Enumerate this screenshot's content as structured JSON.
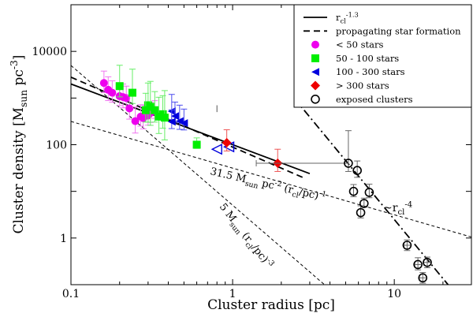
{
  "chart_data": {
    "type": "scatter",
    "title": "",
    "xlabel": "Cluster radius [pc]",
    "ylabel_parts": {
      "pre": "Cluster density [M",
      "sub": "sun",
      "mid": " pc",
      "sup": "-3",
      "post": "]"
    },
    "x_scale": "log",
    "y_scale": "log",
    "xlim": [
      0.1,
      30
    ],
    "ylim": [
      0.1,
      100000
    ],
    "x_ticks": [
      {
        "v": 0.1,
        "label": "0.1"
      },
      {
        "v": 1,
        "label": "1"
      },
      {
        "v": 10,
        "label": "10"
      }
    ],
    "y_ticks": [
      {
        "v": 1,
        "label": "1"
      },
      {
        "v": 100,
        "label": "100"
      },
      {
        "v": 10000,
        "label": "10000"
      }
    ],
    "legend": {
      "position": "top-right",
      "entries": [
        {
          "key": "fit",
          "style": "solid-line",
          "text": "r",
          "sub": "cl",
          "sup": "-1.3"
        },
        {
          "key": "propagating",
          "style": "dashed-line",
          "text": "propagating star formation"
        },
        {
          "key": "lt50",
          "style": "magenta-circle",
          "color": "#ee00ee",
          "text": "< 50 stars"
        },
        {
          "key": "50_100",
          "style": "green-square",
          "color": "#00ee00",
          "text": "50 - 100 stars"
        },
        {
          "key": "100_300",
          "style": "blue-triangle",
          "color": "#0000dd",
          "text": "100 - 300 stars"
        },
        {
          "key": "gt300",
          "style": "red-diamond",
          "color": "#ee0000",
          "text": "> 300 stars"
        },
        {
          "key": "exposed",
          "style": "open-circle",
          "color": "#000000",
          "text": "exposed clusters"
        }
      ]
    },
    "series": [
      {
        "name": "< 50 stars",
        "color": "#ee00ee",
        "marker": "circle",
        "points": [
          [
            0.16,
            2100
          ],
          [
            0.17,
            1500
          ],
          [
            0.2,
            1100
          ],
          [
            0.22,
            1000
          ],
          [
            0.23,
            600
          ],
          [
            0.25,
            320
          ],
          [
            0.27,
            400
          ],
          [
            0.28,
            370
          ],
          [
            0.3,
            420
          ],
          [
            0.31,
            480
          ],
          [
            0.33,
            550
          ],
          [
            0.21,
            1050
          ],
          [
            0.18,
            1300
          ]
        ],
        "err_up": [
          1.8,
          1.9,
          1.7,
          1.8,
          1.9,
          2.0,
          1.8,
          1.9,
          1.8,
          1.7,
          1.6,
          1.9,
          1.8
        ],
        "err_dn": [
          1.6,
          1.7,
          1.6,
          1.6,
          1.7,
          1.8,
          1.6,
          1.7,
          1.6,
          1.6,
          1.5,
          1.7,
          1.6
        ]
      },
      {
        "name": "50 - 100 stars",
        "color": "#00ee00",
        "marker": "square",
        "points": [
          [
            0.2,
            1800
          ],
          [
            0.24,
            1300
          ],
          [
            0.3,
            700
          ],
          [
            0.31,
            650
          ],
          [
            0.33,
            550
          ],
          [
            0.35,
            400
          ],
          [
            0.37,
            450
          ],
          [
            0.38,
            380
          ],
          [
            0.6,
            100
          ],
          [
            0.29,
            550
          ]
        ],
        "err_up": [
          2.8,
          3.2,
          3.0,
          3.5,
          2.5,
          2.6,
          2.5,
          3.8,
          1.4,
          2.3
        ],
        "err_dn": [
          1.7,
          1.7,
          2.3,
          2.5,
          1.8,
          2.3,
          2.0,
          3.0,
          1.2,
          1.8
        ]
      },
      {
        "name": "100 - 300 stars",
        "color": "#0000dd",
        "marker": "triangle-left",
        "points": [
          [
            0.42,
            520
          ],
          [
            0.44,
            410
          ],
          [
            0.47,
            320
          ],
          [
            0.5,
            290
          ],
          [
            0.42,
            310
          ]
        ],
        "err_up": [
          2.3,
          2.0,
          2.2,
          2.0,
          1.8
        ],
        "err_dn": [
          1.5,
          1.4,
          1.5,
          1.4,
          1.4
        ]
      },
      {
        "name": "100 - 300 stars (open)",
        "color": "#0000dd",
        "marker": "triangle-left-open",
        "points": [
          [
            0.8,
            80
          ],
          [
            0.95,
            90
          ]
        ],
        "err_up": [
          1.0,
          1.0
        ],
        "err_dn": [
          1.0,
          1.0
        ]
      },
      {
        "name": "> 300 stars",
        "color": "#ee0000",
        "marker": "diamond",
        "points": [
          [
            0.92,
            110
          ],
          [
            1.9,
            40
          ]
        ],
        "err_up": [
          1.9,
          2.0
        ],
        "err_dn": [
          1.5,
          1.5
        ]
      },
      {
        "name": "exposed clusters",
        "color": "#000000",
        "marker": "open-circle",
        "points": [
          [
            5.2,
            40
          ],
          [
            5.6,
            10
          ],
          [
            5.9,
            28
          ],
          [
            6.2,
            3.5
          ],
          [
            6.5,
            5.5
          ],
          [
            7.0,
            9.5
          ],
          [
            12.0,
            0.7
          ],
          [
            14.0,
            0.27
          ],
          [
            15.0,
            0.14
          ],
          [
            16.0,
            0.3
          ]
        ],
        "err_up": [
          5.0,
          1.4,
          1.6,
          1.4,
          1.3,
          1.5,
          1.3,
          1.4,
          1.3,
          1.3
        ],
        "err_dn": [
          1.5,
          1.3,
          1.4,
          1.3,
          1.2,
          1.3,
          1.3,
          1.3,
          1.3,
          1.3
        ],
        "err_x": [
          [
            1.4,
            5.2
          ],
          [
            5.6,
            5.6
          ],
          [
            5.9,
            5.9
          ],
          [
            6.2,
            6.2
          ],
          [
            6.5,
            6.5
          ],
          [
            7.0,
            7.0
          ],
          [
            11.5,
            12.8
          ],
          [
            13.4,
            14.6
          ],
          [
            14.3,
            15.6
          ],
          [
            15.2,
            17.0
          ]
        ]
      }
    ],
    "lines": [
      {
        "name": "r_cl^-1.3 fit",
        "style": "solid",
        "from": [
          0.1,
          2000
        ],
        "to": [
          3.0,
          24
        ]
      },
      {
        "name": "propagating star formation",
        "style": "dashed",
        "from": [
          0.1,
          2800
        ],
        "to": [
          2.8,
          19
        ]
      },
      {
        "name": "31.5 M_sun pc^-2 (r_cl/pc)^-1",
        "style": "short-dashed",
        "from": [
          0.1,
          315
        ],
        "to": [
          30,
          1.05
        ]
      },
      {
        "name": "5 M_sun (r_cl/pc)^-3",
        "style": "short-dashed",
        "from": [
          0.1,
          5000
        ],
        "to": [
          3.7,
          0.1
        ]
      },
      {
        "name": "~r_cl^-4",
        "style": "dash-dot",
        "from": [
          2.4,
          1000
        ],
        "to": [
          21.5,
          0.1
        ]
      }
    ],
    "annotations": [
      {
        "key": "a315",
        "parts": [
          {
            "t": "31.5 M"
          },
          {
            "t": "sun",
            "sub": true
          },
          {
            "t": " pc"
          },
          {
            "t": "-2",
            "sup": true
          },
          {
            "t": " (r"
          },
          {
            "t": "cl",
            "sub": true
          },
          {
            "t": "/pc)"
          },
          {
            "t": "-1",
            "sup": true
          }
        ]
      },
      {
        "key": "a5",
        "parts": [
          {
            "t": "5 M"
          },
          {
            "t": "sun",
            "sub": true
          },
          {
            "t": " (r"
          },
          {
            "t": "cl",
            "sub": true
          },
          {
            "t": "/pc)"
          },
          {
            "t": "-3",
            "sup": true
          }
        ]
      },
      {
        "key": "a4",
        "parts": [
          {
            "t": "~r"
          },
          {
            "t": "cl",
            "sub": true
          },
          {
            "t": "-4",
            "sup": true
          }
        ]
      }
    ]
  }
}
